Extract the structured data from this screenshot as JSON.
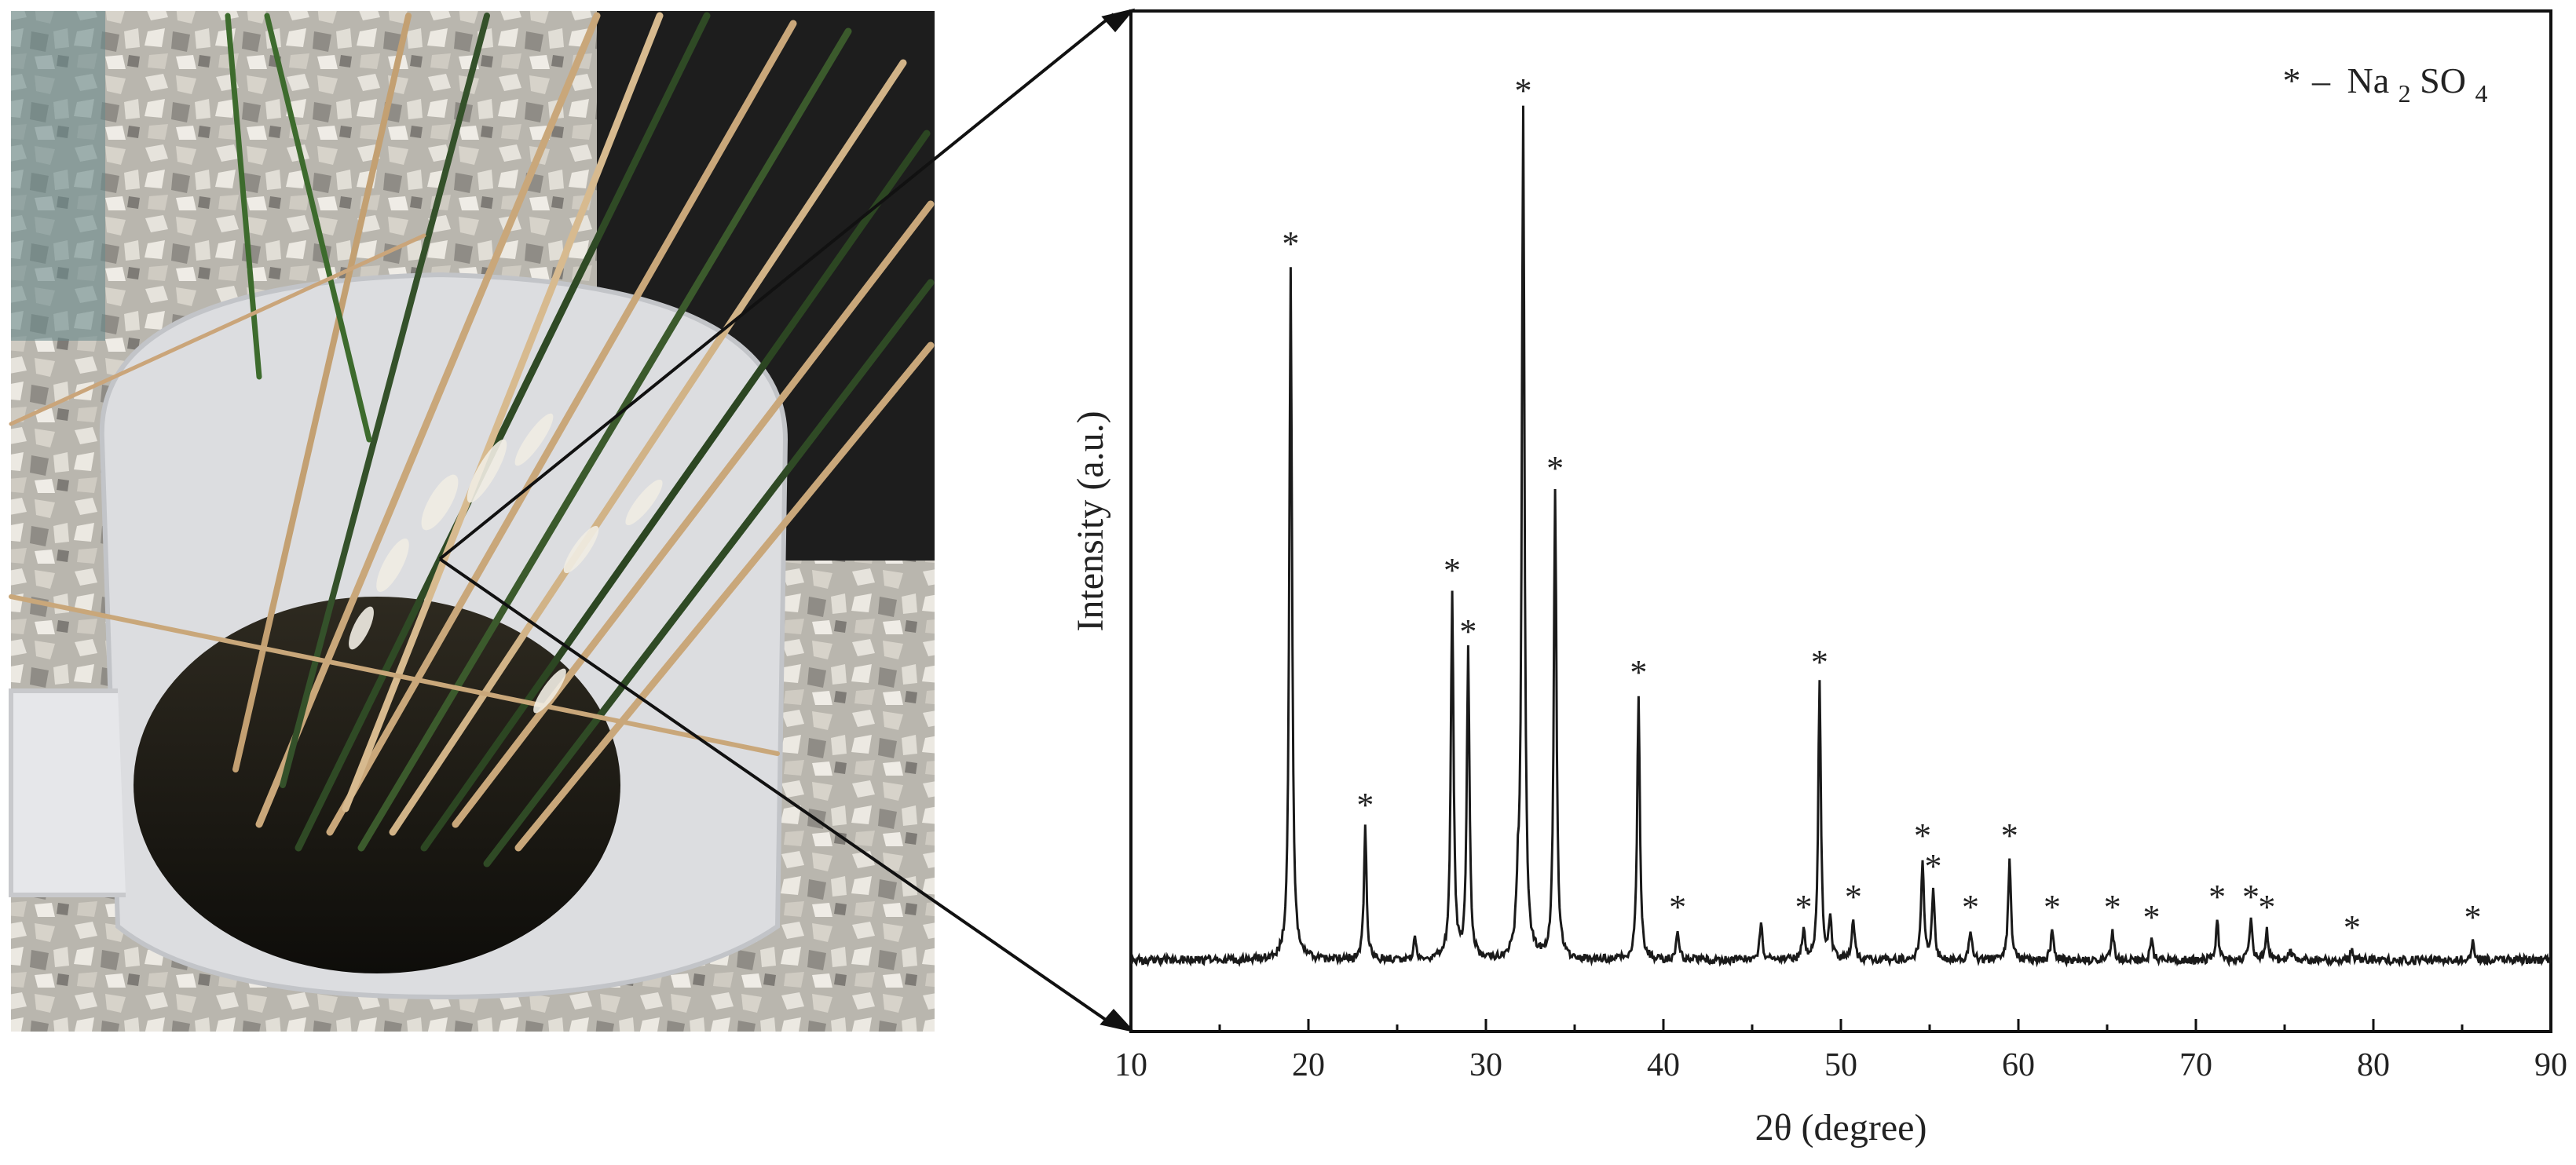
{
  "figure": {
    "photo_caption": "",
    "panel_colors": {
      "line": "#1a1a1a",
      "axis": "#111111",
      "background": "#ffffff"
    }
  },
  "chart_data": {
    "type": "line",
    "title": "",
    "xlabel": "2θ (degree)",
    "ylabel": "Intensity (a.u.)",
    "xlim": [
      10,
      90
    ],
    "ylim": [
      0,
      100
    ],
    "x_ticks": [
      10,
      20,
      30,
      40,
      50,
      60,
      70,
      80,
      90
    ],
    "y_ticks_shown": false,
    "legend": {
      "marker": "*",
      "dash": "–",
      "compound": "Na",
      "sub1": "2",
      "mid": "SO",
      "sub2": "4",
      "placement": "top-right"
    },
    "baseline": 7,
    "series": [
      {
        "name": "Na2SO4",
        "peaks": [
          {
            "x": 19.0,
            "y": 75,
            "marked": true
          },
          {
            "x": 23.2,
            "y": 20,
            "marked": true
          },
          {
            "x": 26.0,
            "y": 9,
            "marked": false
          },
          {
            "x": 28.1,
            "y": 43,
            "marked": true
          },
          {
            "x": 29.0,
            "y": 37,
            "marked": true
          },
          {
            "x": 31.8,
            "y": 12,
            "marked": false
          },
          {
            "x": 32.1,
            "y": 90,
            "marked": true
          },
          {
            "x": 33.9,
            "y": 53,
            "marked": true
          },
          {
            "x": 38.6,
            "y": 33,
            "marked": true
          },
          {
            "x": 40.8,
            "y": 10,
            "marked": true
          },
          {
            "x": 45.5,
            "y": 11,
            "marked": false
          },
          {
            "x": 47.9,
            "y": 10,
            "marked": true
          },
          {
            "x": 48.8,
            "y": 34,
            "marked": true
          },
          {
            "x": 49.4,
            "y": 11,
            "marked": false
          },
          {
            "x": 50.7,
            "y": 11,
            "marked": true
          },
          {
            "x": 54.6,
            "y": 17,
            "marked": true
          },
          {
            "x": 55.2,
            "y": 14,
            "marked": true
          },
          {
            "x": 57.3,
            "y": 10,
            "marked": true
          },
          {
            "x": 59.5,
            "y": 17,
            "marked": true
          },
          {
            "x": 61.9,
            "y": 10,
            "marked": true
          },
          {
            "x": 65.3,
            "y": 10,
            "marked": true
          },
          {
            "x": 67.5,
            "y": 9,
            "marked": true
          },
          {
            "x": 71.2,
            "y": 11,
            "marked": true
          },
          {
            "x": 73.1,
            "y": 11,
            "marked": true
          },
          {
            "x": 74.0,
            "y": 10,
            "marked": true
          },
          {
            "x": 75.3,
            "y": 8,
            "marked": false
          },
          {
            "x": 78.8,
            "y": 8,
            "marked": true
          },
          {
            "x": 85.6,
            "y": 9,
            "marked": true
          }
        ]
      }
    ]
  }
}
